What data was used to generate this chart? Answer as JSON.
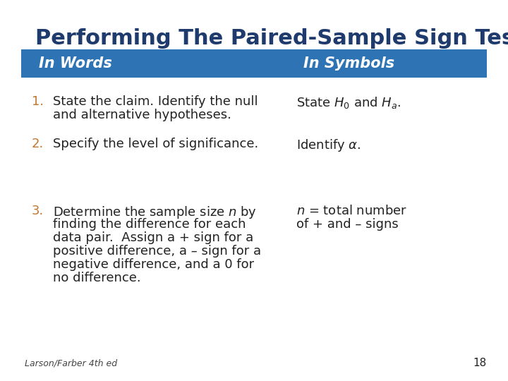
{
  "title": "Performing The Paired-Sample Sign Test",
  "title_color": "#1F3B6E",
  "title_fontsize": 22,
  "header_bg": "#2E74B5",
  "header_text_color": "#FFFFFF",
  "header_words": "In Words",
  "header_symbols": "In Symbols",
  "header_fontsize": 15,
  "bg_color": "#FFFFFF",
  "number_color": "#C07830",
  "text_color": "#222222",
  "body_fontsize": 13,
  "footer_text": "Larson/Farber 4th ed",
  "footer_number": "18",
  "items": [
    {
      "number": "1.",
      "words_lines": [
        "State the claim. Identify the null",
        "and alternative hypotheses."
      ],
      "symbols_lines": [
        "State $H_0$ and $H_a$."
      ]
    },
    {
      "number": "2.",
      "words_lines": [
        "Specify the level of significance."
      ],
      "symbols_lines": [
        "Identify $\\alpha$."
      ]
    },
    {
      "number": "3.",
      "words_lines": [
        "Determine the sample size $n$ by",
        "finding the difference for each",
        "data pair.  Assign a + sign for a",
        "positive difference, a – sign for a",
        "negative difference, and a 0 for",
        "no difference."
      ],
      "symbols_lines": [
        "$n$ = total number",
        "of + and – signs"
      ]
    }
  ]
}
